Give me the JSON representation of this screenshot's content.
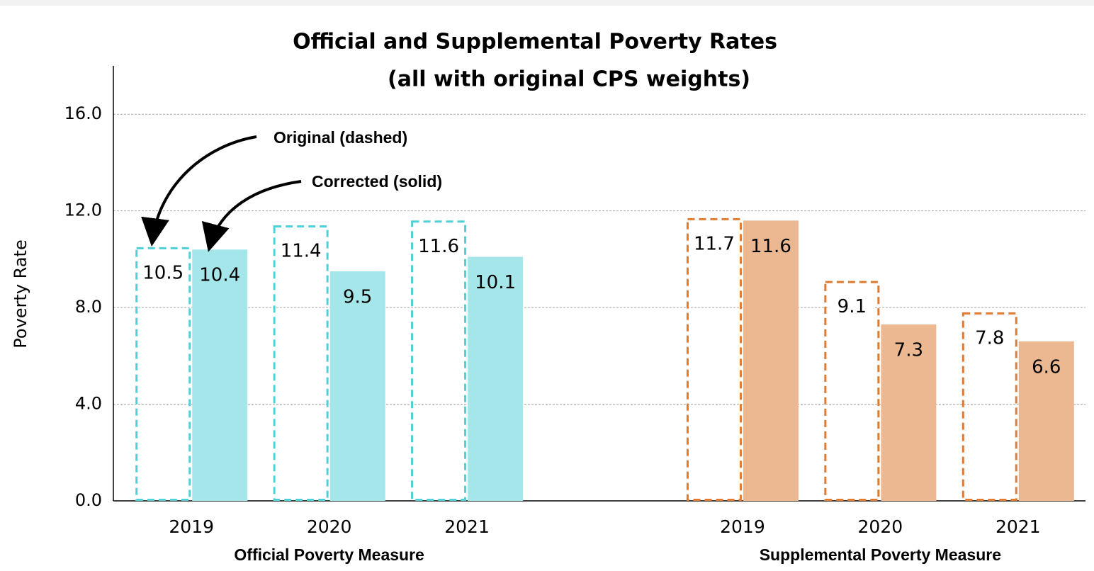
{
  "chart_data": {
    "type": "bar",
    "title": "Official and Supplemental Poverty Rates",
    "subtitle": "(all with original CPS weights)",
    "y_label": "Poverty Rate",
    "categories": [
      "2019",
      "2020",
      "2021",
      null,
      "2019",
      "2020",
      "2021"
    ],
    "groups": [
      {
        "label": "Official Poverty Measure",
        "label_color": "#1f7a7a",
        "edge_color": "#4fd0d6",
        "fill_color": "#a5e6ea"
      },
      {
        "label": "Supplemental Poverty Measure",
        "label_color": "#e07a2e",
        "edge_color": "#e07a2e",
        "fill_color": "#ebb891"
      }
    ],
    "series": [
      {
        "name": "Original (dashed)",
        "style": "dashed",
        "values": [
          10.5,
          11.4,
          11.6,
          null,
          11.7,
          9.1,
          7.8
        ]
      },
      {
        "name": "Corrected (solid)",
        "style": "solid",
        "values": [
          10.4,
          9.5,
          10.1,
          null,
          11.6,
          7.3,
          6.6
        ]
      }
    ],
    "ylim": [
      0,
      18
    ],
    "yticks": [
      {
        "value": 0,
        "label": "0.0"
      },
      {
        "value": 4,
        "label": "4.0"
      },
      {
        "value": 8,
        "label": "8.0"
      },
      {
        "value": 12,
        "label": "12.0"
      },
      {
        "value": 16,
        "label": "16.0"
      }
    ],
    "grid": true
  }
}
